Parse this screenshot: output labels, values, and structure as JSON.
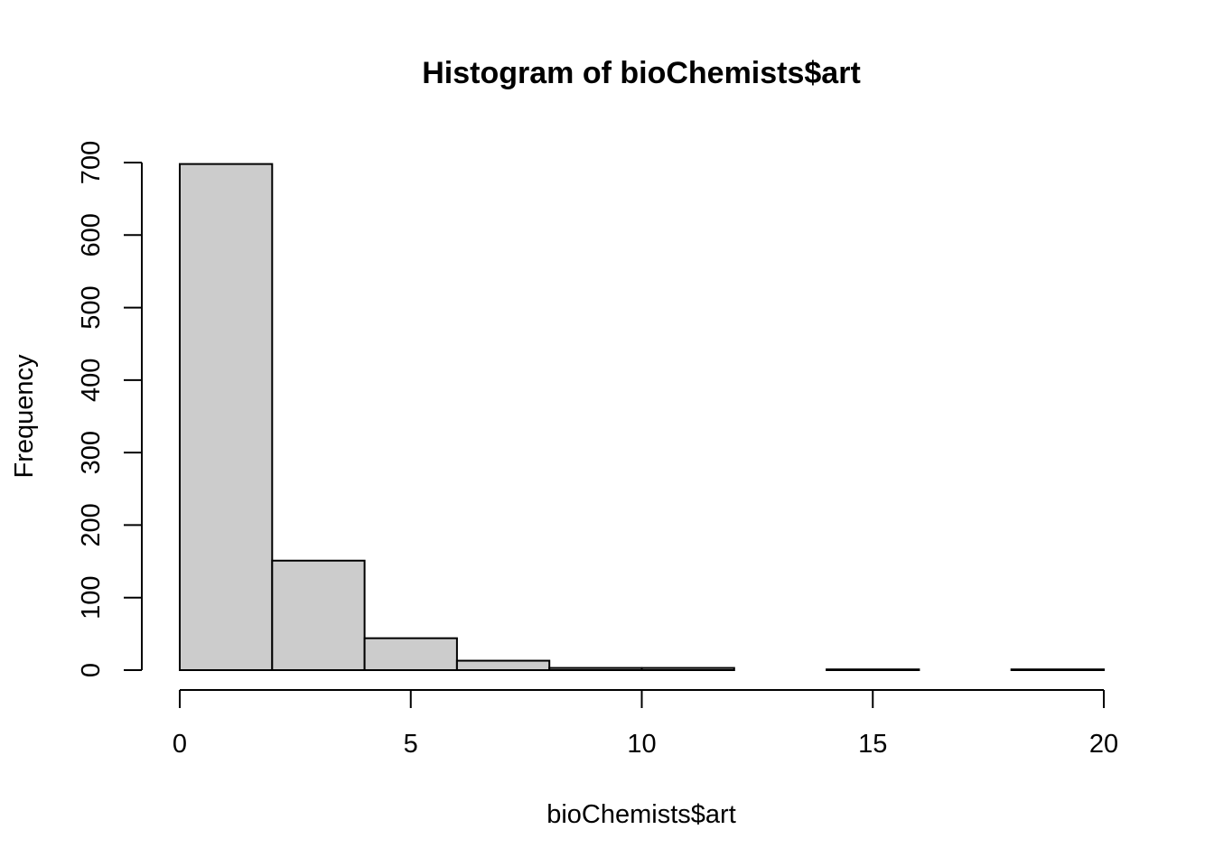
{
  "chart_data": {
    "type": "bar",
    "subtype": "histogram",
    "title": "Histogram of bioChemists$art",
    "xlabel": "bioChemists$art",
    "ylabel": "Frequency",
    "bins": [
      {
        "x0": 0,
        "x1": 2,
        "count": 698
      },
      {
        "x0": 2,
        "x1": 4,
        "count": 151
      },
      {
        "x0": 4,
        "x1": 6,
        "count": 44
      },
      {
        "x0": 6,
        "x1": 8,
        "count": 13
      },
      {
        "x0": 8,
        "x1": 10,
        "count": 3
      },
      {
        "x0": 10,
        "x1": 12,
        "count": 3
      },
      {
        "x0": 12,
        "x1": 14,
        "count": 0
      },
      {
        "x0": 14,
        "x1": 16,
        "count": 1
      },
      {
        "x0": 16,
        "x1": 18,
        "count": 0
      },
      {
        "x0": 18,
        "x1": 20,
        "count": 1
      }
    ],
    "xlim": [
      0,
      20
    ],
    "ylim": [
      0,
      700
    ],
    "x_ticks": [
      0,
      5,
      10,
      15,
      20
    ],
    "y_ticks": [
      0,
      100,
      200,
      300,
      400,
      500,
      600,
      700
    ],
    "bar_color": "#cccccc",
    "edge_color": "#000000",
    "grid": false,
    "legend": "none"
  }
}
